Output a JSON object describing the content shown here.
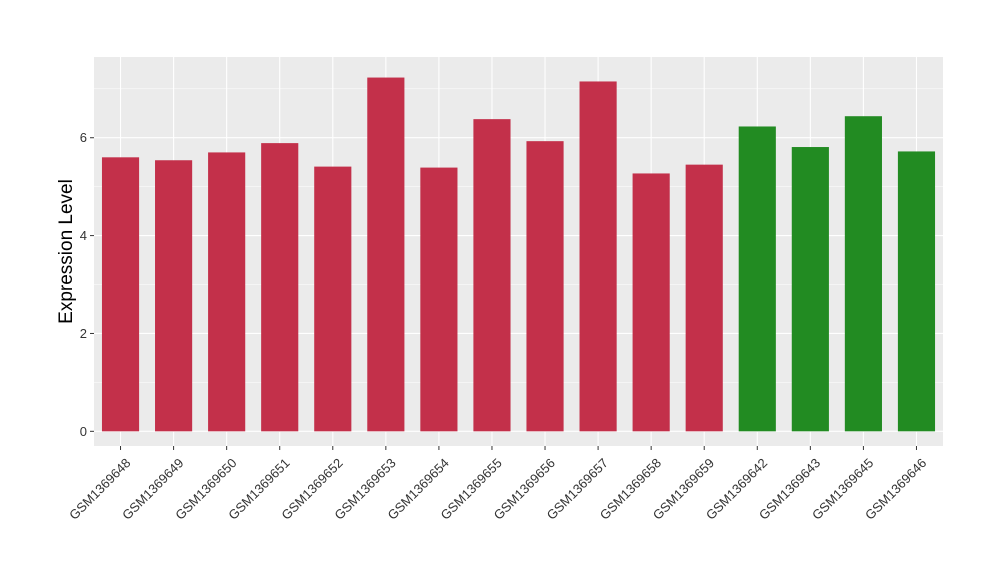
{
  "chart_data": {
    "type": "bar",
    "title": "",
    "xlabel": "",
    "ylabel": "Expression Level",
    "ylim": [
      -0.3,
      7.65
    ],
    "yticks": [
      0,
      2,
      4,
      6
    ],
    "grid": true,
    "legend": "none",
    "categories": [
      "GSM1369648",
      "GSM1369649",
      "GSM1369650",
      "GSM1369651",
      "GSM1369652",
      "GSM1369653",
      "GSM1369654",
      "GSM1369655",
      "GSM1369656",
      "GSM1369657",
      "GSM1369658",
      "GSM1369659",
      "GSM1369642",
      "GSM1369643",
      "GSM1369645",
      "GSM1369646"
    ],
    "values": [
      5.6,
      5.54,
      5.7,
      5.89,
      5.41,
      7.23,
      5.39,
      6.38,
      5.93,
      7.15,
      5.27,
      5.45,
      6.23,
      5.81,
      6.44,
      5.72
    ],
    "bar_colors": [
      "#C3304A",
      "#C3304A",
      "#C3304A",
      "#C3304A",
      "#C3304A",
      "#C3304A",
      "#C3304A",
      "#C3304A",
      "#C3304A",
      "#C3304A",
      "#C3304A",
      "#C3304A",
      "#228B22",
      "#228B22",
      "#228B22",
      "#228B22"
    ],
    "panel_background": "#EBEBEB",
    "grid_color": "#FFFFFF"
  }
}
